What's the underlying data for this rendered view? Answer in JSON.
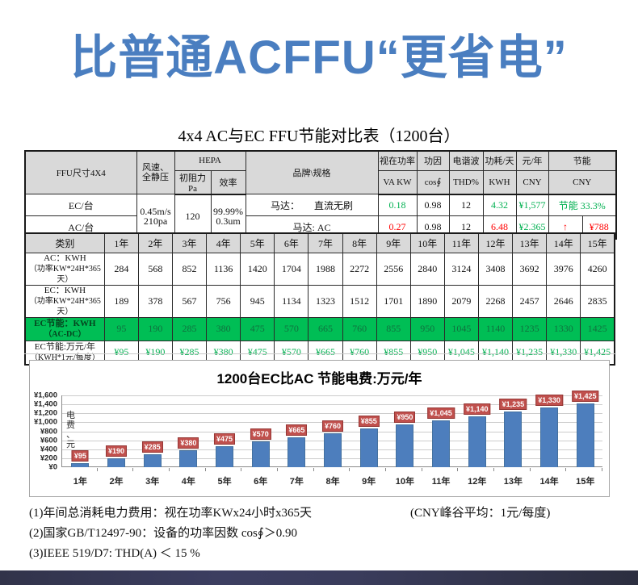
{
  "banner": {
    "title": "比普通ACFFU“更省电”"
  },
  "table_title": "4x4 AC与EC FFU节能对比表（1200台）",
  "colors": {
    "title_blue": "#4a7ec0",
    "bar_blue": "#4d7ebd",
    "bar_label_red": "#c0504d",
    "green_bg": "#00be55",
    "green_text": "#00b050",
    "red_text": "#ff0000",
    "header_gray": "#d9d9d9"
  },
  "upper_table": {
    "header": {
      "ffu_size": "FFU尺寸4X4",
      "wind_l1": "风速、",
      "wind_l2": "全静压",
      "hepa": "HEPA",
      "init_resistance": "初阻力Pa",
      "efficiency": "效率",
      "brand_spec": "品牌\\规格",
      "apparent_power": "视在功率",
      "va_kw": "VA KW",
      "power_factor": "功因",
      "cos_phi": "cos∮",
      "harmonic": "电谐波",
      "thd": "THD%",
      "consumption_day": "功耗/天",
      "kwh": "KWH",
      "yuan_year": "元/年",
      "cny": "CNY",
      "saving": "节能",
      "saving_cny": "CNY"
    },
    "shared": {
      "wind_l1": "0.45m/s",
      "wind_l2": "210pa",
      "resistance": "120",
      "eff_l1": "99.99%",
      "eff_l2": "0.3um"
    },
    "ec_row": {
      "label": "EC/台",
      "motor": "马达：　　直流无刷",
      "va": "0.18",
      "cos": "0.98",
      "thd": "12",
      "kwh": "4.32",
      "cny": "¥1,577",
      "saving": "节能 33.3%"
    },
    "ac_row": {
      "label": "AC/台",
      "motor": "马达: AC",
      "va": "0.27",
      "cos": "0.98",
      "thd": "12",
      "kwh": "6.48",
      "cny": "¥2.365",
      "arrow": "↑",
      "saving": "¥788"
    }
  },
  "year_table": {
    "category_label": "类别",
    "years": [
      "1年",
      "2年",
      "3年",
      "4年",
      "5年",
      "6年",
      "7年",
      "8年",
      "9年",
      "10年",
      "11年",
      "12年",
      "13年",
      "14年",
      "15年"
    ],
    "rows": [
      {
        "style": "plain",
        "label_l1": "AC：KWH",
        "label_l2": "（功率KW*24H*365天）",
        "values": [
          "284",
          "568",
          "852",
          "1136",
          "1420",
          "1704",
          "1988",
          "2272",
          "2556",
          "2840",
          "3124",
          "3408",
          "3692",
          "3976",
          "4260"
        ]
      },
      {
        "style": "plain",
        "label_l1": "EC：KWH",
        "label_l2": "（功率KW*24H*365天）",
        "values": [
          "189",
          "378",
          "567",
          "756",
          "945",
          "1134",
          "1323",
          "1512",
          "1701",
          "1890",
          "2079",
          "2268",
          "2457",
          "2646",
          "2835"
        ]
      },
      {
        "style": "green",
        "label_l1": "EC节能：KWH",
        "label_l2": "（AC-DC）",
        "values": [
          "95",
          "190",
          "285",
          "380",
          "475",
          "570",
          "665",
          "760",
          "855",
          "950",
          "1045",
          "1140",
          "1235",
          "1330",
          "1425"
        ]
      },
      {
        "style": "money",
        "label_l1": "EC节能:万元/年",
        "label_l2": "（KWH*1元/每度）",
        "values": [
          "¥95",
          "¥190",
          "¥285",
          "¥380",
          "¥475",
          "¥570",
          "¥665",
          "¥760",
          "¥855",
          "¥950",
          "¥1,045",
          "¥1,140",
          "¥1,235",
          "¥1,330",
          "¥1,425"
        ]
      }
    ]
  },
  "chart_data": {
    "type": "bar",
    "title": "1200台EC比AC 节能电费:万元/年",
    "categories": [
      "1年",
      "2年",
      "3年",
      "4年",
      "5年",
      "6年",
      "7年",
      "8年",
      "9年",
      "10年",
      "11年",
      "12年",
      "13年",
      "14年",
      "15年"
    ],
    "values": [
      95,
      190,
      285,
      380,
      475,
      570,
      665,
      760,
      855,
      950,
      1045,
      1140,
      1235,
      1330,
      1425
    ],
    "labels": [
      "¥95",
      "¥190",
      "¥285",
      "¥380",
      "¥475",
      "¥570",
      "¥665",
      "¥760",
      "¥855",
      "¥950",
      "¥1,045",
      "¥1,140",
      "¥1,235",
      "¥1,330",
      "¥1,425"
    ],
    "xlabel": "",
    "ylabel": "电费、元",
    "ylim": [
      0,
      1600
    ],
    "ytick_step": 200,
    "ytick_labels": [
      "¥0",
      "¥200",
      "¥400",
      "¥600",
      "¥800",
      "¥1,000",
      "¥1,200",
      "¥1,400",
      "¥1,600"
    ],
    "grid": true,
    "legend": "none",
    "bar_color": "#4d7ebd",
    "label_bg": "#c0504d"
  },
  "notes": {
    "line1": "(1)年间总消耗电力费用：视在功率KWx24小时x365天",
    "line1_right": "(CNY峰谷平均：1元/每度)",
    "line2": "(2)国家GB/T12497-90：设备的功率因数 cos∮＞0.90",
    "line3": "(3)IEEE 519/D7: THD(A) ＜ 15 %"
  }
}
